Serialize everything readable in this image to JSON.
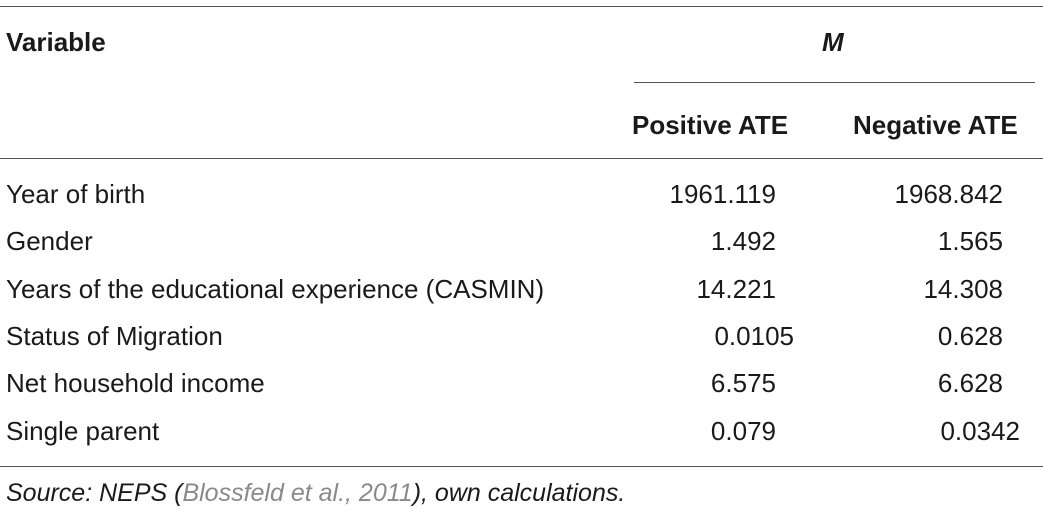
{
  "header": {
    "variable": "Variable",
    "group": "M",
    "col1": "Positive ATE",
    "col2": "Negative ATE"
  },
  "rows": [
    {
      "label": "Year of birth",
      "pos": "1961.119",
      "neg": "1968.842"
    },
    {
      "label": "Gender",
      "pos": "1.492",
      "neg": "1.565"
    },
    {
      "label": "Years of the educational experience (CASMIN)",
      "pos": "14.221",
      "neg": "14.308"
    },
    {
      "label": "Status of Migration",
      "pos": "0.0105",
      "neg": "0.628"
    },
    {
      "label": "Net household income",
      "pos": "6.575",
      "neg": "6.628"
    },
    {
      "label": "Single parent",
      "pos": "0.079",
      "neg": "0.0342"
    }
  ],
  "footnote": {
    "prefix": "Source: NEPS (",
    "citation": "Blossfeld et al., 2011",
    "suffix": "), own calculations."
  }
}
